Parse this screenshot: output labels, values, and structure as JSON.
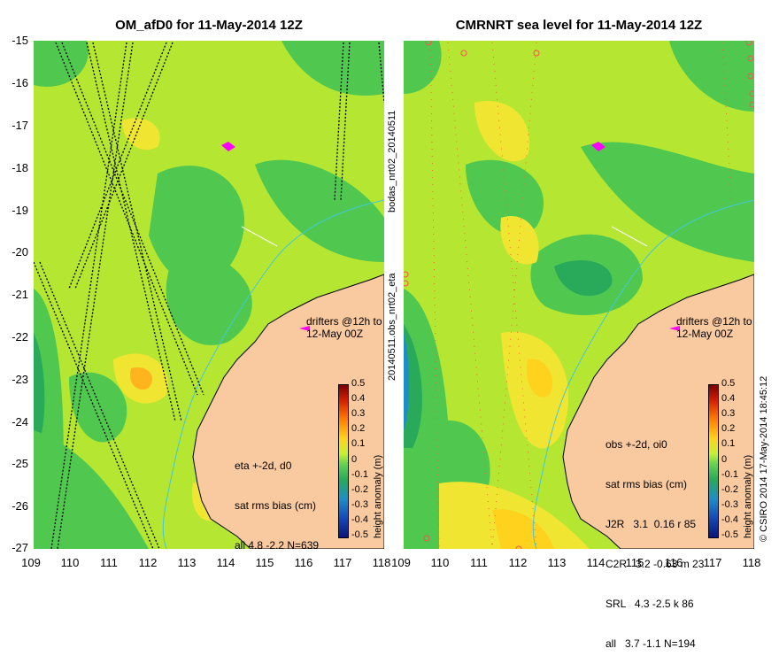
{
  "left_panel": {
    "title": "OM_afD0 for 11-May-2014 12Z",
    "obs_text": [
      "eta +-2d, d0",
      "sat rms bias (cm)",
      "all 4.8 -2.2 N=639"
    ],
    "drifters_text": [
      "drifters @12h to",
      "12-May 00Z"
    ]
  },
  "right_panel": {
    "title": "CMRNRT sea level  for 11-May-2014 12Z",
    "obs_text": [
      "obs +-2d, oi0",
      "sat rms bias (cm)",
      "J2R   3.1  0.16 r 85",
      "C2R   3.2 -0.63 m 23",
      "SRL   4.3 -2.5 k 86",
      "all   3.7 -1.1 N=194"
    ],
    "drifters_text": [
      "drifters @12h to",
      "12-May 00Z"
    ]
  },
  "axes": {
    "y_ticks": [
      "-15",
      "-16",
      "-17",
      "-18",
      "-19",
      "-20",
      "-21",
      "-22",
      "-23",
      "-24",
      "-25",
      "-26",
      "-27"
    ],
    "x_ticks": [
      "109",
      "110",
      "111",
      "112",
      "113",
      "114",
      "115",
      "116",
      "117",
      "118"
    ]
  },
  "colorbar": {
    "ticks": [
      "0.5",
      "0.4",
      "0.3",
      "0.2",
      "0.1",
      "0",
      "-0.1",
      "-0.2",
      "-0.3",
      "-0.4",
      "-0.5"
    ],
    "label": "height anomaly (m)"
  },
  "side_labels": {
    "middle_top": "bodas_nrt02_20140511",
    "middle_bottom": "20140511.obs_nrt02_eta",
    "right_edge": "© CSIRO 2014  17-May-2014 18:45:12"
  },
  "colors": {
    "land": "#f9c9a0",
    "ocean_base": "#b4e632",
    "ocean_green": "#50c850",
    "ocean_yellow": "#f0e632",
    "drifter": "#ff00ff",
    "isobath": "#40c8e0"
  }
}
